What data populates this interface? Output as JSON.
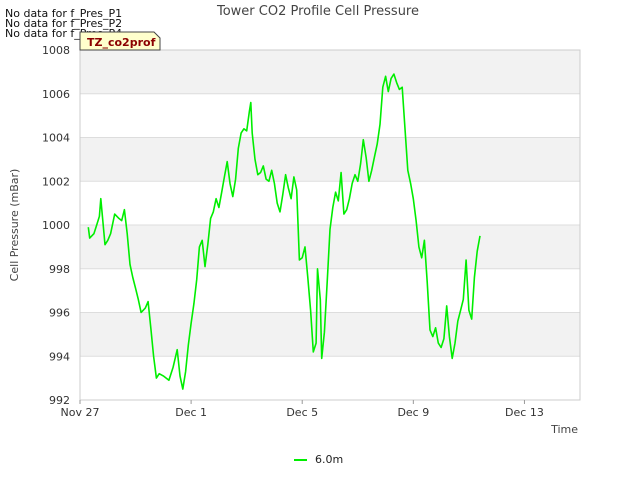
{
  "notices": [
    "No data for f_Pres_P1",
    "No data for f_Pres_P2",
    "No data for f_Pres_P4"
  ],
  "site_tag": "TZ_co2prof",
  "colors": {
    "series": "#00ee00",
    "band": "#f2f2f2",
    "grid": "#dddddd",
    "tag_bg": "#ffffcc",
    "tag_text": "#8b0000"
  },
  "chart_data": {
    "type": "line",
    "title": "Tower CO2 Profile Cell Pressure",
    "xlabel": "Time",
    "ylabel": "Cell Pressure (mBar)",
    "ylim": [
      992,
      1008
    ],
    "yticks": [
      992,
      994,
      996,
      998,
      1000,
      1002,
      1004,
      1006,
      1008
    ],
    "x_ticks": [
      {
        "label": "Nov 27",
        "day": 0
      },
      {
        "label": "Dec 1",
        "day": 4
      },
      {
        "label": "Dec 5",
        "day": 8
      },
      {
        "label": "Dec 9",
        "day": 12
      },
      {
        "label": "Dec 13",
        "day": 16
      }
    ],
    "xlim_days": [
      0,
      18
    ],
    "grid": true,
    "legend_position": "bottom",
    "series": [
      {
        "name": "6.0m",
        "points": [
          [
            0.3,
            999.9
          ],
          [
            0.35,
            999.4
          ],
          [
            0.5,
            999.6
          ],
          [
            0.6,
            1000.0
          ],
          [
            0.7,
            1000.4
          ],
          [
            0.75,
            1001.2
          ],
          [
            0.82,
            1000.2
          ],
          [
            0.9,
            999.1
          ],
          [
            1.0,
            999.3
          ],
          [
            1.1,
            999.6
          ],
          [
            1.25,
            1000.5
          ],
          [
            1.4,
            1000.3
          ],
          [
            1.5,
            1000.2
          ],
          [
            1.6,
            1000.7
          ],
          [
            1.7,
            999.6
          ],
          [
            1.8,
            998.2
          ],
          [
            1.9,
            997.6
          ],
          [
            2.0,
            997.1
          ],
          [
            2.1,
            996.6
          ],
          [
            2.2,
            996.0
          ],
          [
            2.35,
            996.2
          ],
          [
            2.45,
            996.5
          ],
          [
            2.55,
            995.3
          ],
          [
            2.65,
            994.0
          ],
          [
            2.75,
            993.0
          ],
          [
            2.85,
            993.2
          ],
          [
            3.0,
            993.1
          ],
          [
            3.2,
            992.9
          ],
          [
            3.35,
            993.5
          ],
          [
            3.5,
            994.3
          ],
          [
            3.6,
            993.1
          ],
          [
            3.7,
            992.5
          ],
          [
            3.8,
            993.3
          ],
          [
            3.9,
            994.5
          ],
          [
            4.0,
            995.5
          ],
          [
            4.1,
            996.4
          ],
          [
            4.2,
            997.5
          ],
          [
            4.3,
            999.0
          ],
          [
            4.4,
            999.3
          ],
          [
            4.5,
            998.1
          ],
          [
            4.6,
            999.1
          ],
          [
            4.7,
            1000.3
          ],
          [
            4.8,
            1000.6
          ],
          [
            4.9,
            1001.2
          ],
          [
            5.0,
            1000.8
          ],
          [
            5.1,
            1001.5
          ],
          [
            5.2,
            1002.2
          ],
          [
            5.3,
            1002.9
          ],
          [
            5.4,
            1001.9
          ],
          [
            5.5,
            1001.3
          ],
          [
            5.6,
            1002.1
          ],
          [
            5.7,
            1003.5
          ],
          [
            5.8,
            1004.2
          ],
          [
            5.9,
            1004.4
          ],
          [
            6.0,
            1004.3
          ],
          [
            6.1,
            1005.2
          ],
          [
            6.15,
            1005.6
          ],
          [
            6.2,
            1004.2
          ],
          [
            6.3,
            1003.0
          ],
          [
            6.4,
            1002.3
          ],
          [
            6.5,
            1002.4
          ],
          [
            6.6,
            1002.7
          ],
          [
            6.7,
            1002.1
          ],
          [
            6.8,
            1002.0
          ],
          [
            6.9,
            1002.5
          ],
          [
            7.0,
            1001.9
          ],
          [
            7.1,
            1001.0
          ],
          [
            7.2,
            1000.6
          ],
          [
            7.3,
            1001.4
          ],
          [
            7.4,
            1002.3
          ],
          [
            7.5,
            1001.7
          ],
          [
            7.6,
            1001.2
          ],
          [
            7.7,
            1002.2
          ],
          [
            7.8,
            1001.6
          ],
          [
            7.9,
            998.4
          ],
          [
            8.0,
            998.5
          ],
          [
            8.1,
            999.0
          ],
          [
            8.2,
            997.6
          ],
          [
            8.3,
            996.1
          ],
          [
            8.4,
            994.2
          ],
          [
            8.5,
            994.6
          ],
          [
            8.55,
            998.0
          ],
          [
            8.65,
            996.6
          ],
          [
            8.7,
            993.9
          ],
          [
            8.8,
            995.1
          ],
          [
            8.9,
            997.4
          ],
          [
            9.0,
            999.8
          ],
          [
            9.1,
            1000.8
          ],
          [
            9.2,
            1001.5
          ],
          [
            9.3,
            1001.1
          ],
          [
            9.4,
            1002.4
          ],
          [
            9.5,
            1000.5
          ],
          [
            9.6,
            1000.7
          ],
          [
            9.7,
            1001.2
          ],
          [
            9.8,
            1001.9
          ],
          [
            9.9,
            1002.3
          ],
          [
            10.0,
            1002.0
          ],
          [
            10.1,
            1002.8
          ],
          [
            10.2,
            1003.9
          ],
          [
            10.3,
            1003.1
          ],
          [
            10.4,
            1002.0
          ],
          [
            10.5,
            1002.5
          ],
          [
            10.6,
            1003.1
          ],
          [
            10.7,
            1003.7
          ],
          [
            10.8,
            1004.6
          ],
          [
            10.9,
            1006.3
          ],
          [
            11.0,
            1006.8
          ],
          [
            11.1,
            1006.1
          ],
          [
            11.2,
            1006.7
          ],
          [
            11.3,
            1006.9
          ],
          [
            11.4,
            1006.5
          ],
          [
            11.5,
            1006.2
          ],
          [
            11.6,
            1006.3
          ],
          [
            11.7,
            1004.4
          ],
          [
            11.8,
            1002.5
          ],
          [
            11.9,
            1001.9
          ],
          [
            12.0,
            1001.2
          ],
          [
            12.1,
            1000.2
          ],
          [
            12.2,
            999.0
          ],
          [
            12.3,
            998.5
          ],
          [
            12.4,
            999.3
          ],
          [
            12.5,
            997.4
          ],
          [
            12.6,
            995.2
          ],
          [
            12.7,
            994.9
          ],
          [
            12.8,
            995.3
          ],
          [
            12.9,
            994.6
          ],
          [
            13.0,
            994.4
          ],
          [
            13.1,
            994.8
          ],
          [
            13.2,
            996.3
          ],
          [
            13.3,
            994.9
          ],
          [
            13.4,
            993.9
          ],
          [
            13.5,
            994.6
          ],
          [
            13.6,
            995.6
          ],
          [
            13.7,
            996.1
          ],
          [
            13.8,
            996.6
          ],
          [
            13.9,
            998.4
          ],
          [
            14.0,
            996.1
          ],
          [
            14.1,
            995.7
          ],
          [
            14.2,
            997.6
          ],
          [
            14.3,
            998.8
          ],
          [
            14.4,
            999.5
          ]
        ]
      }
    ]
  }
}
